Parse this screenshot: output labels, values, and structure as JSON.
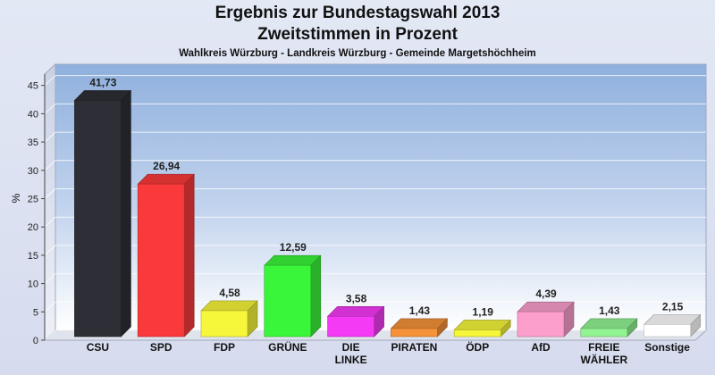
{
  "chart_data": {
    "type": "bar",
    "title": "Ergebnis zur Bundestagswahl 2013",
    "subtitle": "Zweitstimmen in Prozent",
    "subsubtitle": "Wahlkreis Würzburg - Landkreis Würzburg - Gemeinde Margetshöchheim",
    "ylabel": "%",
    "ylim": [
      0,
      47
    ],
    "yticks": [
      0,
      5,
      10,
      15,
      20,
      25,
      30,
      35,
      40,
      45
    ],
    "grid": true,
    "categories": [
      "CSU",
      "SPD",
      "FDP",
      "GRÜNE",
      "DIE LINKE",
      "PIRATEN",
      "ÖDP",
      "AfD",
      "FREIE WÄHLER",
      "Sonstige"
    ],
    "category_lines": [
      [
        "CSU"
      ],
      [
        "SPD"
      ],
      [
        "FDP"
      ],
      [
        "GRÜNE"
      ],
      [
        "DIE",
        "LINKE"
      ],
      [
        "PIRATEN"
      ],
      [
        "ÖDP"
      ],
      [
        "AfD"
      ],
      [
        "FREIE",
        "WÄHLER"
      ],
      [
        "Sonstige"
      ]
    ],
    "values": [
      41.73,
      26.94,
      4.58,
      12.59,
      3.58,
      1.43,
      1.19,
      4.39,
      1.43,
      2.15
    ],
    "value_labels": [
      "41,73",
      "26,94",
      "4,58",
      "12,59",
      "3,58",
      "1,43",
      "1,19",
      "4,39",
      "1,43",
      "2,15"
    ],
    "colors": [
      "#2e2e36",
      "#fa3a3a",
      "#f6f63a",
      "#3af63a",
      "#f53af5",
      "#f5923a",
      "#f6f63a",
      "#fc9fcc",
      "#92f492",
      "#ffffff"
    ]
  }
}
